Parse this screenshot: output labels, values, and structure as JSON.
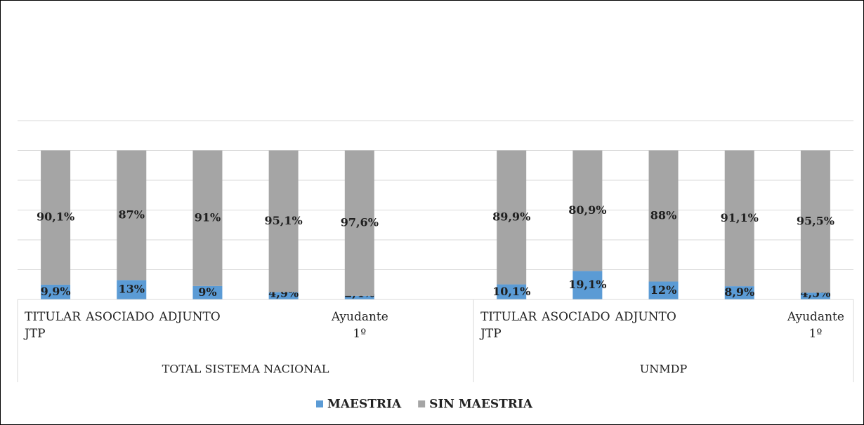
{
  "chart_data": {
    "type": "stacked_bar",
    "groups": [
      "TOTAL SISTEMA NACIONAL",
      "UNMDP"
    ],
    "categories": [
      "TITULAR",
      "ASOCIADO",
      "ADJUNTO",
      "JTP",
      "Ayudante 1º",
      null,
      "TITULAR",
      "ASOCIADO",
      "ADJUNTO",
      "JTP",
      "Ayudante 1º"
    ],
    "series": [
      {
        "name": "MAESTRIA",
        "color": "#5b9bd5",
        "values": [
          9.9,
          13,
          9,
          4.9,
          2.4,
          null,
          10.1,
          19.1,
          12,
          8.9,
          4.5
        ],
        "value_labels": [
          "9,9%",
          "13%",
          "9%",
          "4,9%",
          "2,4%",
          null,
          "10,1%",
          "19,1%",
          "12%",
          "8,9%",
          "4,5%"
        ]
      },
      {
        "name": "SIN MAESTRIA",
        "color": "#a5a5a5",
        "values": [
          90.1,
          87,
          91,
          95.1,
          97.6,
          null,
          89.9,
          80.9,
          88,
          91.1,
          95.5
        ],
        "value_labels": [
          "90,1%",
          "87%",
          "91%",
          "95,1%",
          "97,6%",
          null,
          "89,9%",
          "80,9%",
          "88%",
          "91,1%",
          "95,5%"
        ]
      }
    ],
    "ylim": [
      0,
      120
    ],
    "yticks": [
      0,
      20,
      40,
      60,
      80,
      100,
      120
    ],
    "grid": true,
    "legend": "bottom"
  }
}
